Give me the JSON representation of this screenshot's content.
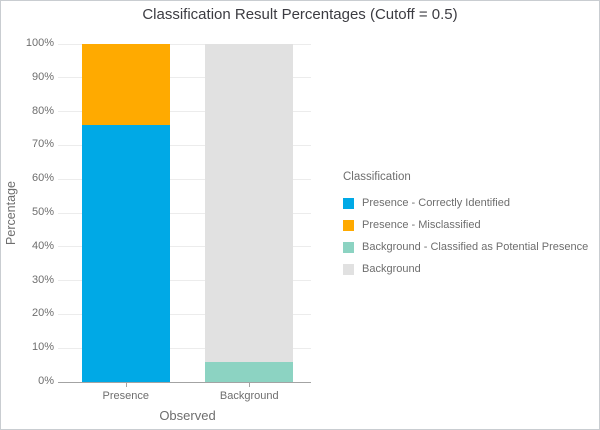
{
  "window": {
    "title": "Classification Result Percentages (Cutoff = 0.5)"
  },
  "chart_data": {
    "type": "bar",
    "stacked": true,
    "title": "Classification Result Percentages (Cutoff = 0.5)",
    "xlabel": "Observed",
    "ylabel": "Percentage",
    "categories": [
      "Presence",
      "Background"
    ],
    "series": [
      {
        "name": "Presence - Correctly Identified",
        "color": "#00A9E6",
        "values": [
          76,
          0
        ]
      },
      {
        "name": "Presence - Misclassified",
        "color": "#FFAA00",
        "values": [
          24,
          0
        ]
      },
      {
        "name": "Background - Classified as Potential Presence",
        "color": "#8CD3C2",
        "values": [
          0,
          6
        ]
      },
      {
        "name": "Background",
        "color": "#E1E1E1",
        "values": [
          0,
          94
        ]
      }
    ],
    "ylim": [
      0,
      100
    ],
    "ytick_step": 10,
    "ytick_suffix": "%",
    "grid": true,
    "legend": {
      "title": "Classification",
      "position": "right"
    }
  },
  "style_colors": {
    "gridline": "#ececec",
    "axis_line": "#a3a3a3",
    "axis_text": "#6e6e6e",
    "title_text": "#3c3c42"
  }
}
